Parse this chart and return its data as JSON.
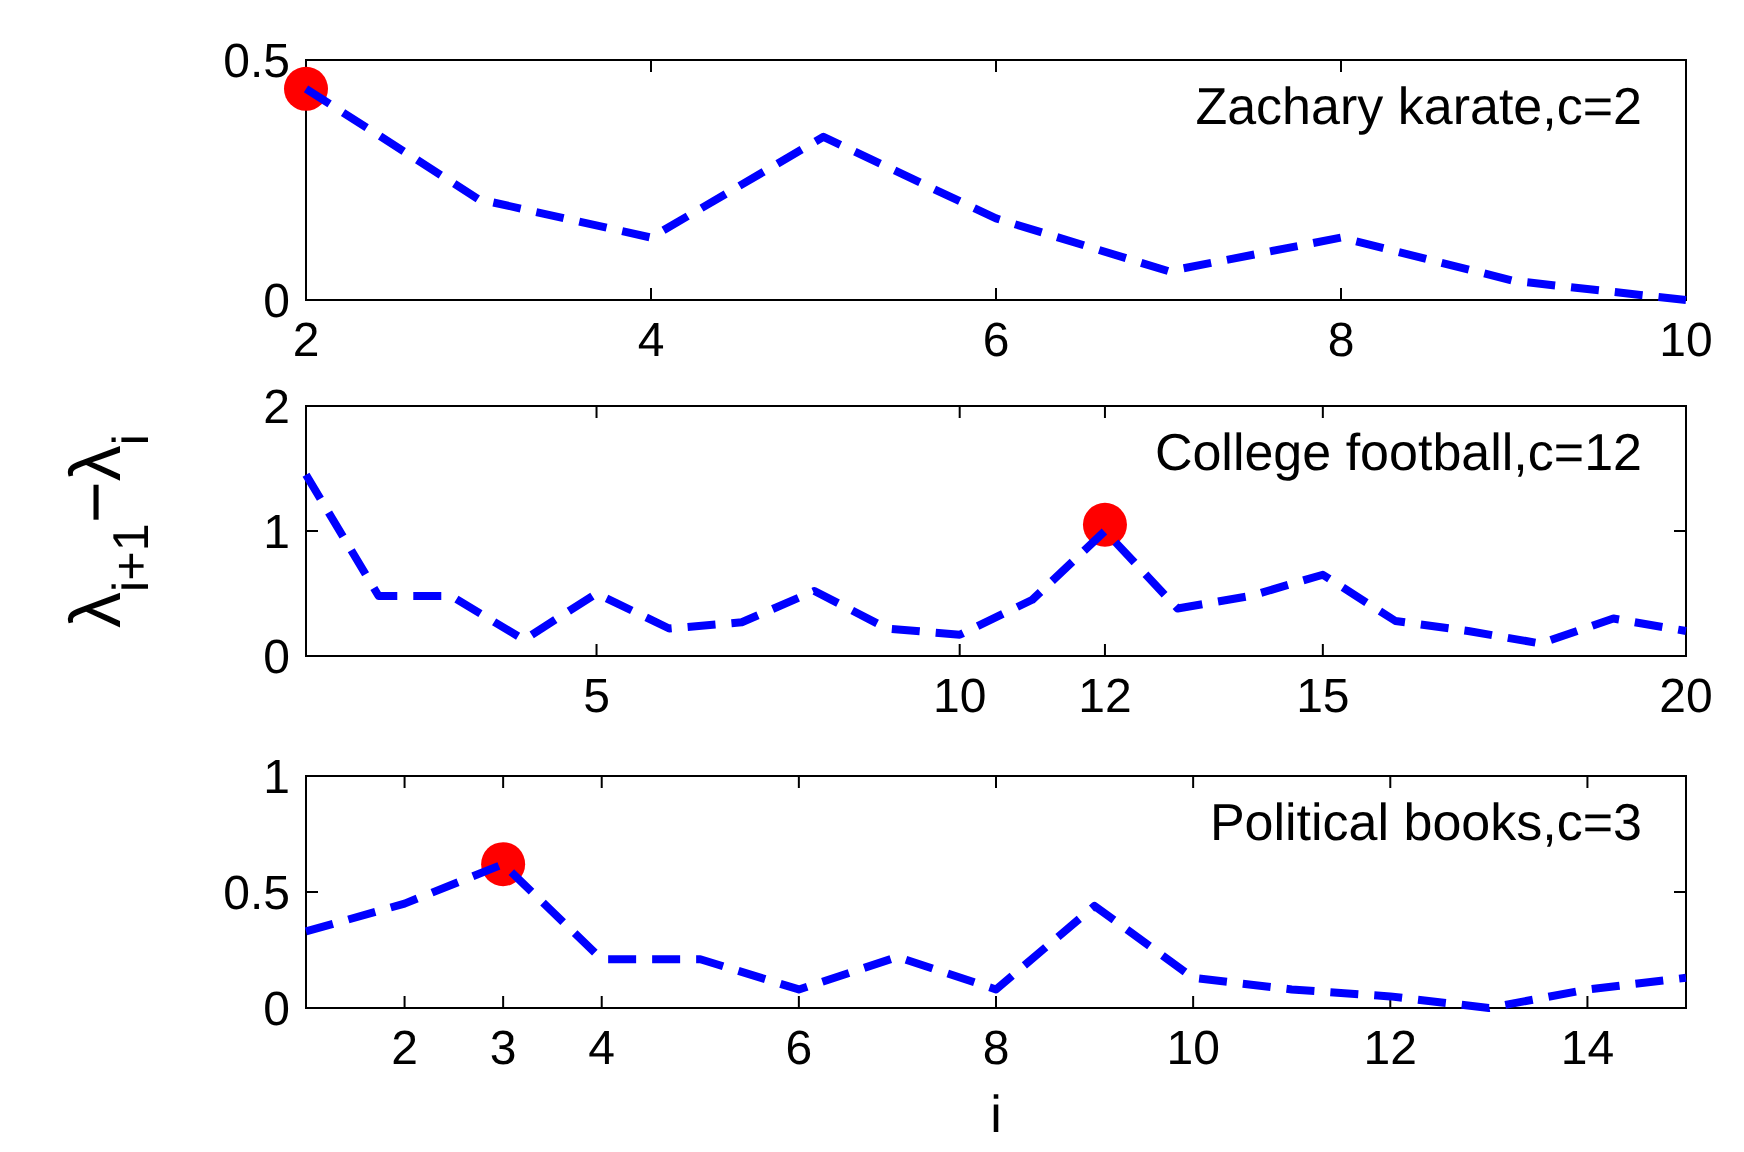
{
  "chart_data": [
    {
      "type": "line",
      "annotations": [
        "Zachary karate,c=2"
      ],
      "x": [
        2,
        3,
        4,
        5,
        6,
        7,
        8,
        9,
        10
      ],
      "xlim": [
        2,
        10
      ],
      "xticks": [
        2,
        4,
        6,
        8,
        10
      ],
      "ylim": [
        0,
        0.5
      ],
      "yticks": [
        0,
        0.5
      ],
      "line_style": "dashed",
      "series": [
        {
          "color": "#0000ff",
          "values": [
            0.44,
            0.21,
            0.13,
            0.34,
            0.17,
            0.06,
            0.13,
            0.04,
            0.0
          ]
        },
        {
          "type": "scatter",
          "marker": "circle",
          "color": "#ff0000",
          "x": [
            2
          ],
          "values": [
            0.44
          ]
        }
      ]
    },
    {
      "type": "line",
      "ylabel": "λ$_{i+1}$−λ$_{i}$",
      "annotations": [
        "College football,c=12"
      ],
      "x": [
        1,
        2,
        3,
        4,
        5,
        6,
        7,
        8,
        9,
        10,
        11,
        12,
        13,
        14,
        15,
        16,
        17,
        18,
        19,
        20
      ],
      "xlim": [
        1,
        20
      ],
      "xticks": [
        5,
        10,
        12,
        15,
        20
      ],
      "ylim": [
        0,
        2
      ],
      "yticks": [
        0,
        1,
        2
      ],
      "line_style": "dashed",
      "series": [
        {
          "color": "#0000ff",
          "values": [
            1.45,
            0.48,
            0.48,
            0.13,
            0.5,
            0.22,
            0.27,
            0.52,
            0.22,
            0.17,
            0.45,
            1.0,
            0.38,
            0.48,
            0.65,
            0.28,
            0.2,
            0.1,
            0.3,
            0.2
          ]
        },
        {
          "type": "scatter",
          "marker": "circle",
          "color": "#ff0000",
          "x": [
            12
          ],
          "values": [
            1.05
          ]
        }
      ]
    },
    {
      "type": "line",
      "xlabel": "i",
      "annotations": [
        "Political books,c=3"
      ],
      "x": [
        1,
        2,
        3,
        4,
        5,
        6,
        7,
        8,
        9,
        10,
        11,
        12,
        13,
        14,
        15
      ],
      "xlim": [
        1,
        15
      ],
      "xticks": [
        2,
        3,
        4,
        6,
        8,
        10,
        12,
        14
      ],
      "ylim": [
        0,
        1
      ],
      "yticks": [
        0,
        0.5,
        1
      ],
      "line_style": "dashed",
      "series": [
        {
          "color": "#0000ff",
          "values": [
            0.33,
            0.45,
            0.62,
            0.21,
            0.21,
            0.08,
            0.22,
            0.08,
            0.44,
            0.13,
            0.08,
            0.05,
            0.0,
            0.08,
            0.13
          ]
        },
        {
          "type": "scatter",
          "marker": "circle",
          "color": "#ff0000",
          "x": [
            3
          ],
          "values": [
            0.62
          ]
        }
      ]
    }
  ]
}
